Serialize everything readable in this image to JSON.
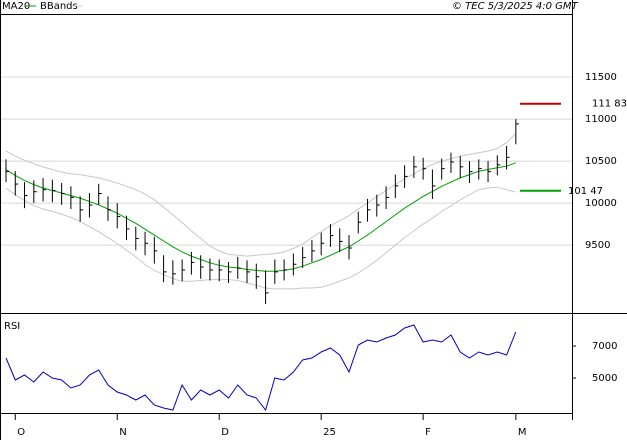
{
  "chart_data": [
    {
      "type": "ohlc",
      "source": "© TEC 5/3/2025 4:0 GMT",
      "close": [
        10375,
        10227,
        10090,
        10136,
        10160,
        10150,
        10114,
        10068,
        9920,
        9977,
        10114,
        9920,
        9840,
        9693,
        9580,
        9523,
        9432,
        9182,
        9159,
        9205,
        9295,
        9240,
        9205,
        9205,
        9182,
        9227,
        9182,
        9125,
        8932,
        9182,
        9205,
        9273,
        9352,
        9432,
        9523,
        9614,
        9545,
        9466,
        9773,
        9920,
        9977,
        10068,
        10205,
        10318,
        10432,
        10410,
        10205,
        10410,
        10489,
        10432,
        10375,
        10410,
        10375,
        10455,
        10545,
        10943
      ],
      "high": [
        10520,
        10380,
        10250,
        10270,
        10300,
        10280,
        10240,
        10200,
        10080,
        10120,
        10230,
        10080,
        10000,
        9850,
        9720,
        9660,
        9600,
        9380,
        9320,
        9330,
        9420,
        9380,
        9340,
        9330,
        9300,
        9360,
        9320,
        9280,
        9200,
        9330,
        9330,
        9400,
        9480,
        9560,
        9650,
        9750,
        9700,
        9620,
        9900,
        10050,
        10100,
        10200,
        10340,
        10450,
        10560,
        10540,
        10400,
        10530,
        10600,
        10560,
        10500,
        10520,
        10500,
        10570,
        10680,
        11000
      ],
      "low": [
        10250,
        10090,
        9940,
        10000,
        10020,
        10010,
        9980,
        9930,
        9780,
        9830,
        9980,
        9790,
        9700,
        9560,
        9440,
        9380,
        9280,
        9060,
        9030,
        9070,
        9150,
        9100,
        9080,
        9070,
        9050,
        9100,
        9050,
        8980,
        8800,
        9040,
        9080,
        9140,
        9230,
        9300,
        9380,
        9480,
        9420,
        9330,
        9640,
        9780,
        9840,
        9930,
        10060,
        10180,
        10300,
        10280,
        10050,
        10280,
        10360,
        10300,
        10240,
        10280,
        10250,
        10330,
        10400,
        10700
      ],
      "series": [
        {
          "name": "MA20",
          "color": "#00a000",
          "values": [
            10400,
            10330,
            10270,
            10220,
            10180,
            10150,
            10120,
            10090,
            10060,
            10020,
            9980,
            9930,
            9880,
            9820,
            9760,
            9690,
            9620,
            9550,
            9480,
            9420,
            9370,
            9330,
            9290,
            9260,
            9240,
            9230,
            9210,
            9200,
            9190,
            9190,
            9200,
            9220,
            9250,
            9290,
            9330,
            9380,
            9430,
            9480,
            9550,
            9620,
            9700,
            9780,
            9860,
            9940,
            10010,
            10080,
            10140,
            10200,
            10250,
            10300,
            10340,
            10380,
            10400,
            10420,
            10440,
            10480
          ]
        },
        {
          "name": "BBands",
          "color": "#c8c8c8",
          "upper": [
            10620,
            10560,
            10510,
            10470,
            10430,
            10400,
            10370,
            10350,
            10340,
            10320,
            10300,
            10270,
            10240,
            10200,
            10160,
            10110,
            10040,
            9950,
            9860,
            9770,
            9670,
            9580,
            9490,
            9430,
            9390,
            9380,
            9370,
            9380,
            9390,
            9400,
            9420,
            9460,
            9510,
            9590,
            9660,
            9730,
            9790,
            9850,
            9930,
            10000,
            10080,
            10150,
            10220,
            10290,
            10350,
            10410,
            10460,
            10500,
            10530,
            10560,
            10580,
            10600,
            10620,
            10650,
            10720,
            10830
          ],
          "lower": [
            10180,
            10100,
            10030,
            9970,
            9930,
            9900,
            9870,
            9830,
            9780,
            9720,
            9660,
            9590,
            9520,
            9440,
            9360,
            9270,
            9200,
            9150,
            9100,
            9070,
            9070,
            9080,
            9090,
            9090,
            9090,
            9080,
            9050,
            9020,
            8990,
            8980,
            8980,
            8980,
            8990,
            8990,
            9000,
            9030,
            9070,
            9110,
            9170,
            9240,
            9320,
            9410,
            9500,
            9590,
            9670,
            9750,
            9820,
            9900,
            9970,
            10040,
            10100,
            10160,
            10180,
            10190,
            10160,
            10130
          ]
        }
      ],
      "markers": [
        {
          "value": 11183,
          "label": "111 83",
          "color": "#c00000"
        },
        {
          "value": 10147,
          "label": "101 47",
          "color": "#00a000"
        }
      ],
      "ylim": [
        8693,
        12250
      ],
      "yticks": [
        9500,
        10000,
        10500,
        11000,
        11500
      ],
      "grid": true
    },
    {
      "type": "line",
      "title": "RSI",
      "color": "#0000c0",
      "categories": [
        null,
        "O",
        null,
        null,
        null,
        null,
        null,
        null,
        null,
        null,
        null,
        null,
        "N",
        null,
        null,
        null,
        null,
        null,
        null,
        null,
        null,
        null,
        null,
        "D",
        null,
        null,
        null,
        null,
        null,
        null,
        null,
        null,
        null,
        null,
        "25",
        null,
        null,
        null,
        null,
        null,
        null,
        null,
        null,
        null,
        null,
        "F",
        null,
        null,
        null,
        null,
        null,
        null,
        null,
        null,
        null,
        "M"
      ],
      "values": [
        6250,
        4875,
        5190,
        4750,
        5375,
        5000,
        4875,
        4375,
        4560,
        5190,
        5500,
        4560,
        4125,
        3940,
        3625,
        3940,
        3310,
        3125,
        3000,
        4560,
        3625,
        4250,
        3940,
        4250,
        3750,
        4560,
        3940,
        3750,
        3000,
        5000,
        4875,
        5375,
        6125,
        6250,
        6625,
        6875,
        6440,
        5375,
        7060,
        7375,
        7250,
        7500,
        7690,
        8125,
        8310,
        7250,
        7375,
        7250,
        7690,
        6625,
        6250,
        6625,
        6440,
        6625,
        6440,
        7875
      ],
      "ylim": [
        2812,
        8875
      ],
      "yticks": [
        5000,
        7000
      ]
    }
  ]
}
